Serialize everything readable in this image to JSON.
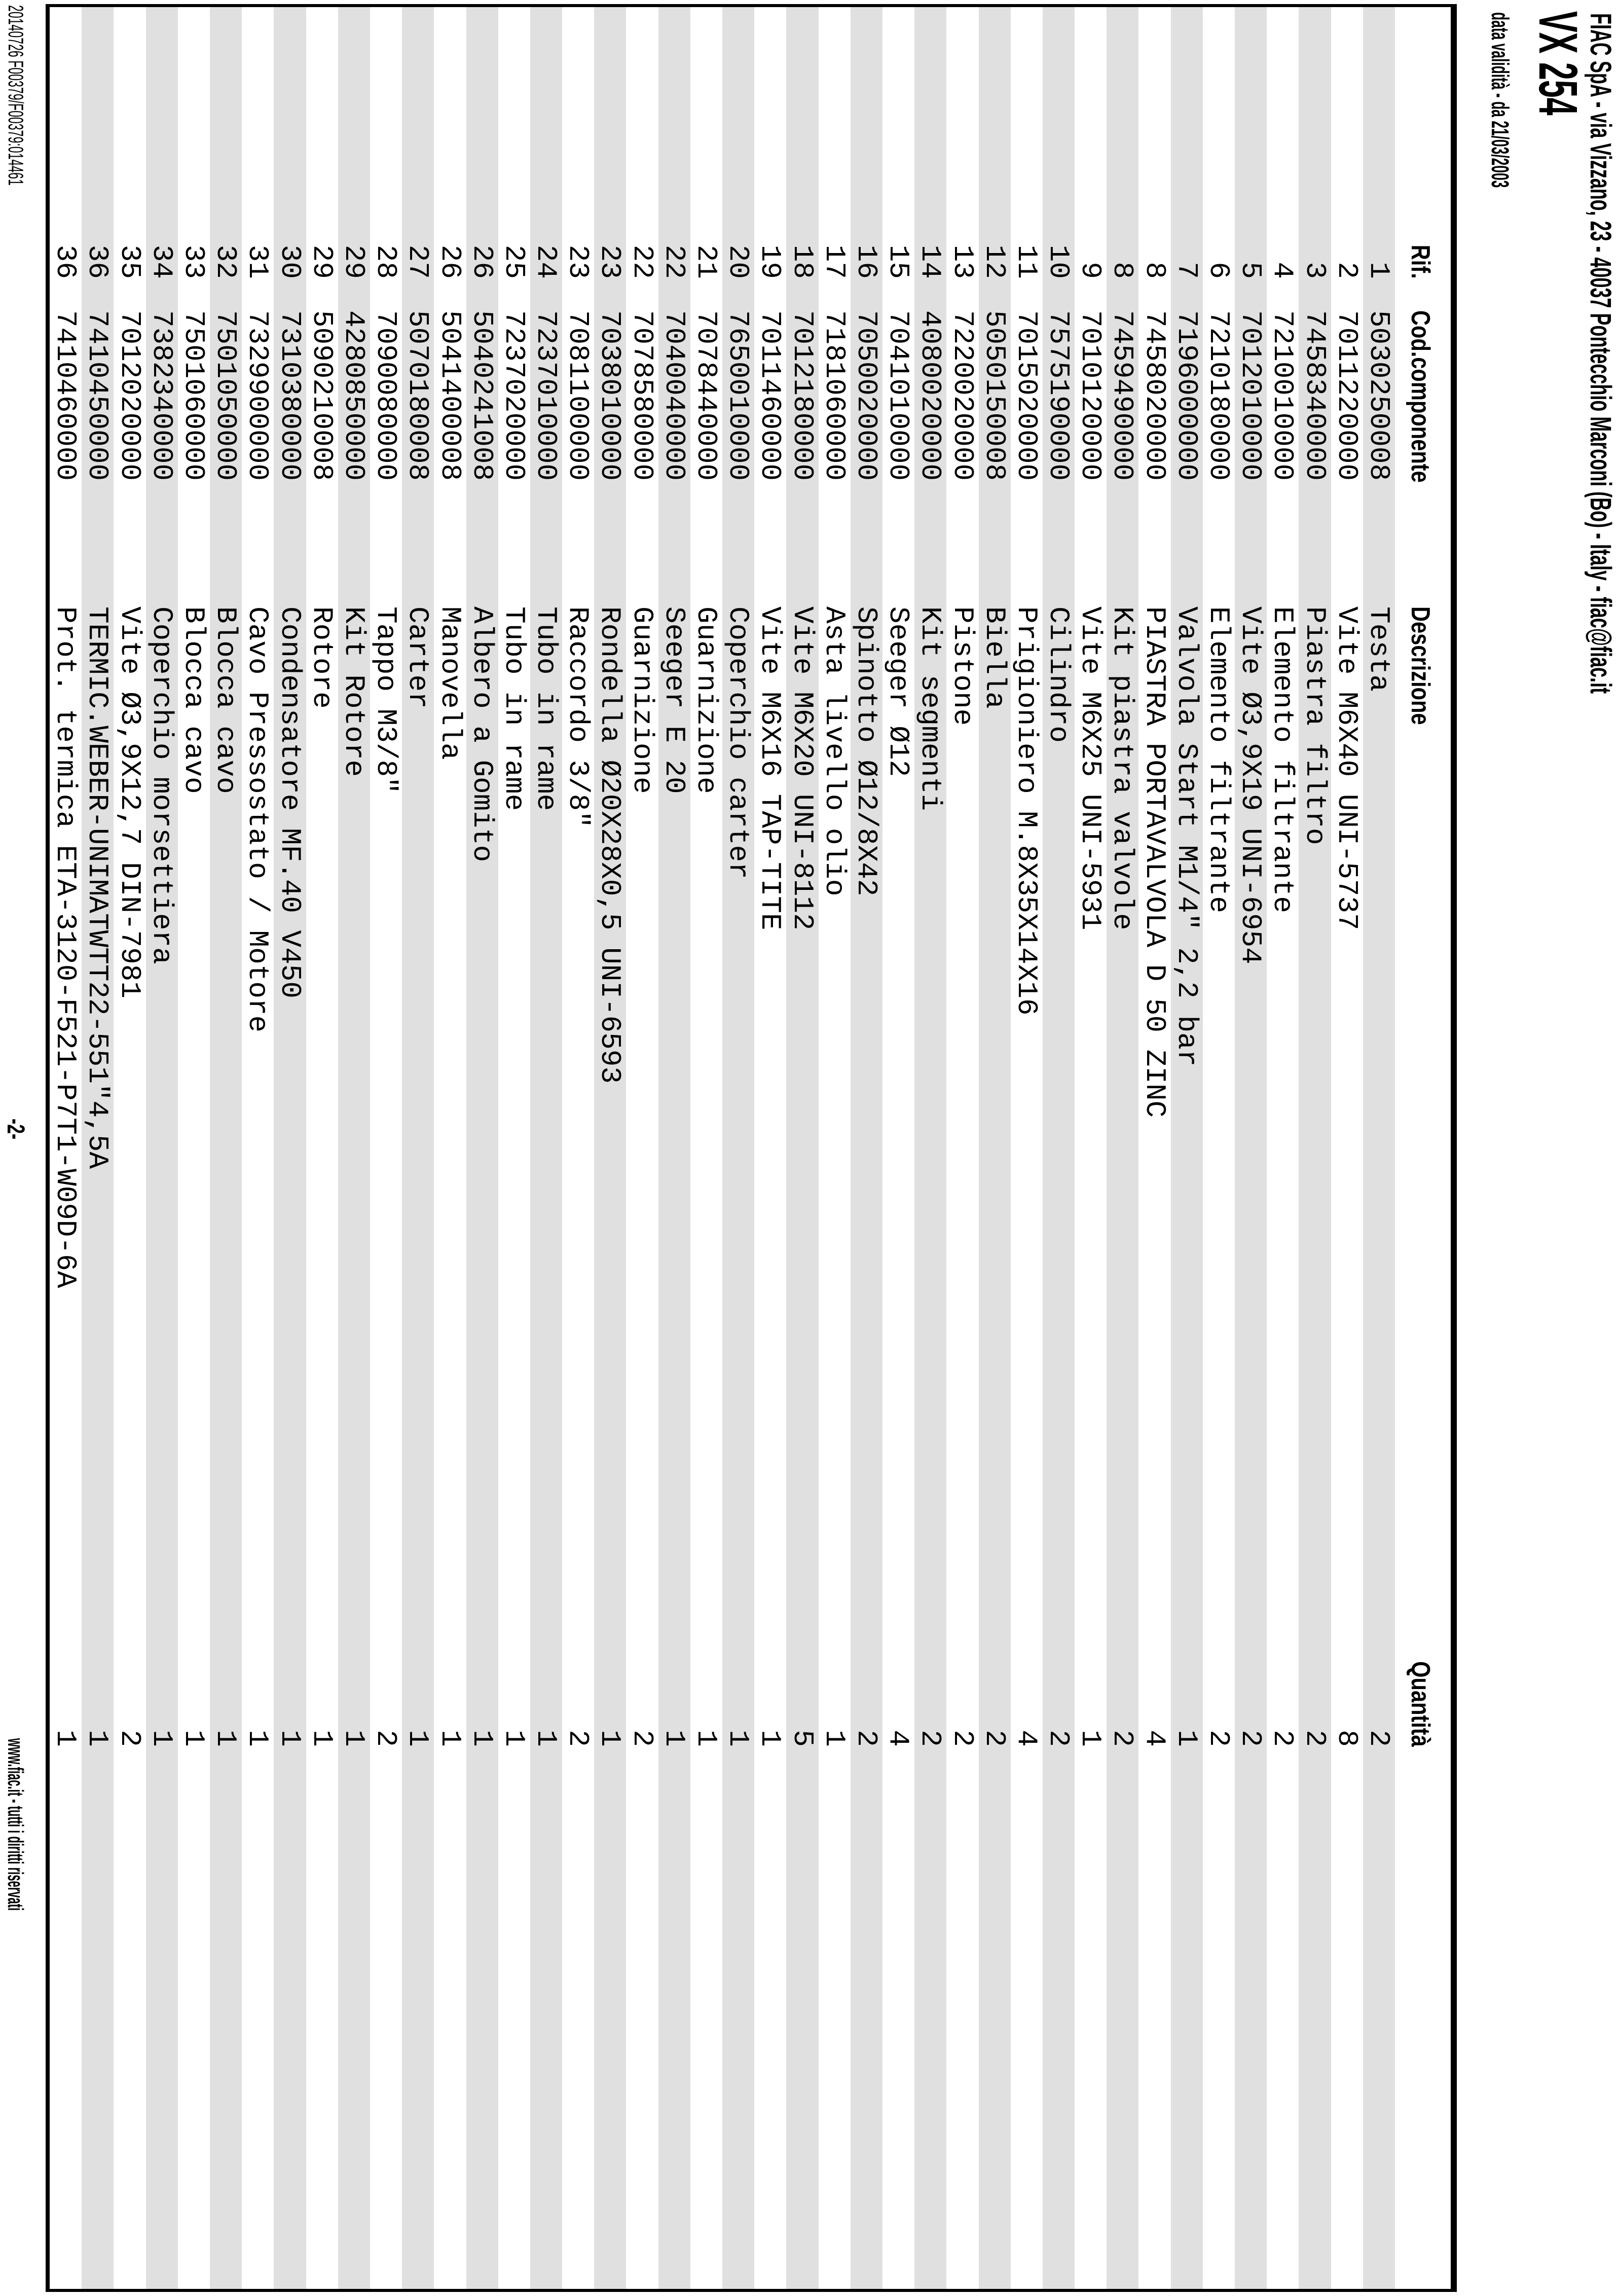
{
  "header": {
    "company_line": "FIAC SpA - via Vizzano, 23 - 40037 Pontecchio Marconi (Bo) - Italy - fiac@fiac.it",
    "model": "VX 254",
    "validity": "data validità - da 21/03/2003"
  },
  "table": {
    "columns": [
      "Rif.",
      "Cod.componente",
      "Descrizione",
      "Quantità"
    ],
    "rows": [
      [
        "1",
        "5030250008",
        "Testa",
        "2"
      ],
      [
        "2",
        "7011220000",
        "Vite M6X40 UNI-5737",
        "8"
      ],
      [
        "3",
        "7458340000",
        "Piastra filtro",
        "2"
      ],
      [
        "4",
        "7210010000",
        "Elemento filtrante",
        "2"
      ],
      [
        "5",
        "7012010000",
        "Vite Ø3,9X19 UNI-6954",
        "2"
      ],
      [
        "6",
        "7210180000",
        "Elemento filtrante",
        "2"
      ],
      [
        "7",
        "7196000000",
        "Valvola Start M1/4\" 2,2 bar",
        "1"
      ],
      [
        "8",
        "7458020000",
        "PIASTRA PORTAVALVOLA D 50 ZINC",
        "4"
      ],
      [
        "8",
        "7459490000",
        "Kit piastra valvole",
        "2"
      ],
      [
        "9",
        "7010120000",
        "Vite M6X25 UNI-5931",
        "1"
      ],
      [
        "10",
        "7575190000",
        "Cilindro",
        "2"
      ],
      [
        "11",
        "7015020000",
        "Prigioniero M.8X35X14X16",
        "4"
      ],
      [
        "12",
        "5050150008",
        "Biella",
        "2"
      ],
      [
        "13",
        "7220020000",
        "Pistone",
        "2"
      ],
      [
        "14",
        "4080020000",
        "Kit segmenti",
        "2"
      ],
      [
        "15",
        "7041010000",
        "Seeger Ø12",
        "4"
      ],
      [
        "16",
        "7050020000",
        "Spinotto Ø12/8X42",
        "2"
      ],
      [
        "17",
        "7181060000",
        "Asta livello olio",
        "1"
      ],
      [
        "18",
        "7012180000",
        "Vite M6X20 UNI-8112",
        "5"
      ],
      [
        "19",
        "7011460000",
        "Vite M6X16 TAP-TITE",
        "1"
      ],
      [
        "20",
        "7650010000",
        "Coperchio carter",
        "1"
      ],
      [
        "21",
        "7078440000",
        "Guarnizione",
        "1"
      ],
      [
        "22",
        "7040040000",
        "Seeger E 20",
        "1"
      ],
      [
        "22",
        "7078580000",
        "Guarnizione",
        "2"
      ],
      [
        "23",
        "7038010000",
        "Rondella Ø20X28X0,5 UNI-6593",
        "1"
      ],
      [
        "23",
        "7081100000",
        "Raccordo 3/8\"",
        "2"
      ],
      [
        "24",
        "7237010000",
        "Tubo in rame",
        "1"
      ],
      [
        "25",
        "7237020000",
        "Tubo in rame",
        "1"
      ],
      [
        "26",
        "5040241008",
        "Albero a Gomito",
        "1"
      ],
      [
        "26",
        "5041400008",
        "Manovella",
        "1"
      ],
      [
        "27",
        "5070180008",
        "Carter",
        "1"
      ],
      [
        "28",
        "7090080000",
        "Tappo M3/8\"",
        "2"
      ],
      [
        "29",
        "4280850000",
        "Kit Rotore",
        "1"
      ],
      [
        "29",
        "5090210008",
        "Rotore",
        "1"
      ],
      [
        "30",
        "7310380000",
        "Condensatore MF.40 V450",
        "1"
      ],
      [
        "31",
        "7329900000",
        "Cavo Pressostato / Motore",
        "1"
      ],
      [
        "32",
        "7501050000",
        "Blocca cavo",
        "1"
      ],
      [
        "33",
        "7501060000",
        "Blocca cavo",
        "1"
      ],
      [
        "34",
        "7382340000",
        "Coperchio morsettiera",
        "1"
      ],
      [
        "35",
        "7012020000",
        "Vite Ø3,9X12,7 DIN-7981",
        "2"
      ],
      [
        "36",
        "7410450000",
        "TERMIC.WEBER-UNIMATWTT22-551\"4,5A",
        "1"
      ],
      [
        "36",
        "7410460000",
        "Prot. termica ETA-3120-F521-P7T1-W09D-6A",
        "1"
      ]
    ]
  },
  "footer": {
    "left": "20140726 F00379/F00379:014461",
    "page_number": "-2-",
    "right": "www.fiac.it - tutti i diritti riservati"
  }
}
